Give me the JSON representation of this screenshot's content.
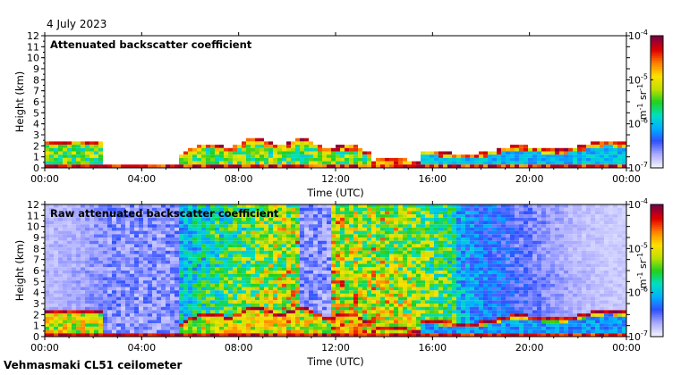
{
  "header": {
    "date": "4 July 2023",
    "instrument": "Vehmasmaki CL51 ceilometer"
  },
  "colors": {
    "colormap": [
      "#f4f4ff",
      "#a8a8ff",
      "#3050ff",
      "#00b0ff",
      "#00e0c0",
      "#20d020",
      "#c0e000",
      "#ffe000",
      "#ff8000",
      "#e00000",
      "#800040"
    ],
    "frame": "#000000",
    "background": "#ffffff"
  },
  "chart_data": [
    {
      "type": "heatmap",
      "title": "Attenuated backscatter coefficient",
      "xlabel": "Time (UTC)",
      "ylabel": "Height (km)",
      "xlim": [
        0,
        24
      ],
      "ylim": [
        0,
        12
      ],
      "xtick_labels": [
        "00:00",
        "04:00",
        "08:00",
        "12:00",
        "16:00",
        "20:00",
        "00:00"
      ],
      "ytick_labels": [
        "0",
        "1",
        "2",
        "3",
        "4",
        "5",
        "6",
        "7",
        "8",
        "9",
        "10",
        "11",
        "12"
      ],
      "colorbar": {
        "scale": "log",
        "range": [
          1e-07,
          0.0001
        ],
        "tick_labels": [
          "10-7",
          "10-6",
          "10-5",
          "10-4"
        ],
        "label": "m-1 sr-1"
      }
    },
    {
      "type": "heatmap",
      "title": "Raw attenuated backscatter coefficient",
      "xlabel": "Time (UTC)",
      "ylabel": "Height (km)",
      "xlim": [
        0,
        24
      ],
      "ylim": [
        0,
        12
      ],
      "xtick_labels": [
        "00:00",
        "04:00",
        "08:00",
        "12:00",
        "16:00",
        "20:00",
        "00:00"
      ],
      "ytick_labels": [
        "0",
        "1",
        "2",
        "3",
        "4",
        "5",
        "6",
        "7",
        "8",
        "9",
        "10",
        "11",
        "12"
      ],
      "colorbar": {
        "scale": "log",
        "range": [
          1e-07,
          0.0001
        ],
        "tick_labels": [
          "10-7",
          "10-6",
          "10-5",
          "10-4"
        ],
        "label": "m-1 sr-1"
      }
    }
  ]
}
